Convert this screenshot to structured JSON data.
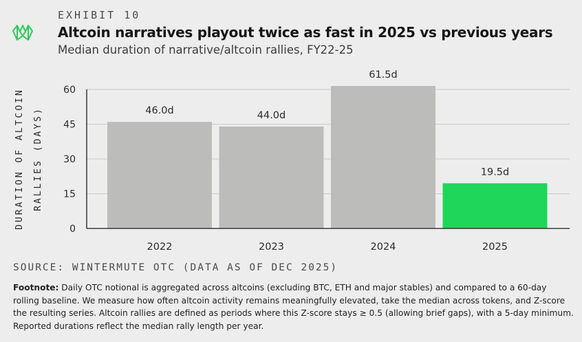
{
  "header": {
    "exhibit": "EXHIBIT 10",
    "title": "Altcoin narratives playout twice as fast in 2025 vs previous years",
    "subtitle": "Median duration of narrative/altcoin rallies, FY22-25",
    "logo_icon": "wintermute-logo-icon"
  },
  "colors": {
    "bar_default": "#bcbdbb",
    "bar_highlight": "#1fd65a",
    "logo": "#2ec95c",
    "background": "#ecedec"
  },
  "chart_data": {
    "type": "bar",
    "ylabel": "DURATION OF ALTCOIN RALLIES (DAYS)",
    "xlabel": "",
    "categories": [
      "2022",
      "2023",
      "2024",
      "2025"
    ],
    "values": [
      46.0,
      44.0,
      61.5,
      19.5
    ],
    "data_labels": [
      "46.0d",
      "44.0d",
      "61.5d",
      "19.5d"
    ],
    "highlight_index": 3,
    "ylim": [
      0,
      60
    ],
    "yticks": [
      0,
      15,
      30,
      45,
      60
    ],
    "grid": true
  },
  "source": "SOURCE: WINTERMUTE OTC (DATA AS OF DEC 2025)",
  "footnote": {
    "label": "Footnote:",
    "text": " Daily OTC notional is aggregated across altcoins (excluding BTC, ETH and major stables) and compared to a 60-day rolling baseline. We measure how often altcoin activity remains meaningfully elevated, take the median across tokens, and Z-score the resulting series. Altcoin rallies are defined as periods where this Z-score stays ≥ 0.5 (allowing brief gaps), with a 5-day minimum. Reported durations reflect the median rally length per year."
  }
}
